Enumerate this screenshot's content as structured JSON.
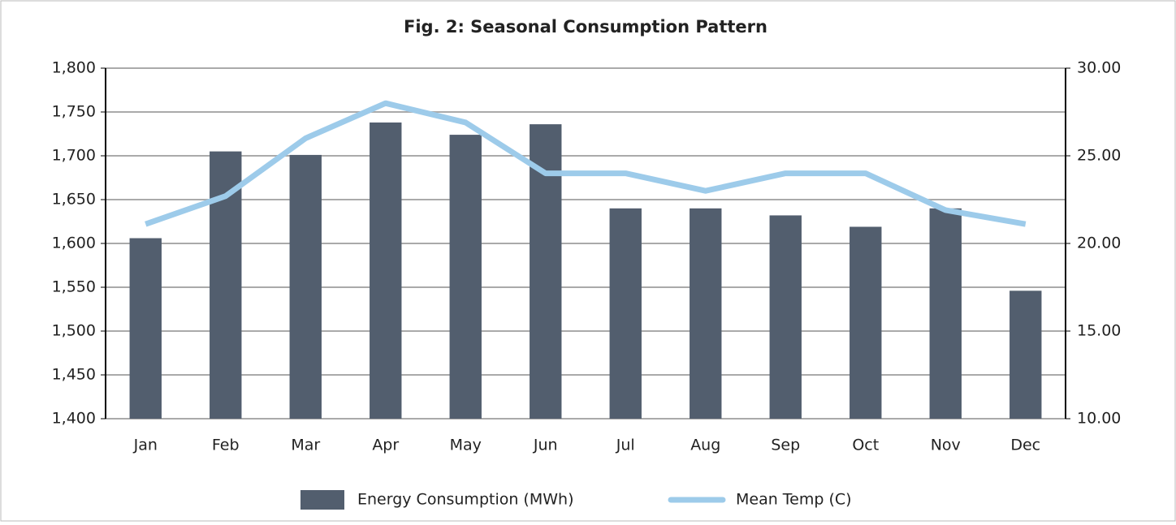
{
  "chart_data": {
    "type": "bar",
    "title": "Fig. 2: Seasonal Consumption Pattern",
    "categories": [
      "Jan",
      "Feb",
      "Mar",
      "Apr",
      "May",
      "Jun",
      "Jul",
      "Aug",
      "Sep",
      "Oct",
      "Nov",
      "Dec"
    ],
    "series": [
      {
        "name": "Energy Consumption (MWh)",
        "type": "bar",
        "color": "#525e6e",
        "values": [
          1606,
          1705,
          1701,
          1738,
          1724,
          1736,
          1640,
          1640,
          1632,
          1619,
          1640,
          1546
        ]
      },
      {
        "name": "Mean Temp (C)",
        "type": "line",
        "axis": "y2",
        "color": "#9dcbea",
        "values": [
          21.1,
          22.7,
          26,
          28,
          26.9,
          24,
          24,
          23,
          24,
          24,
          21.9,
          21.1
        ]
      }
    ],
    "ylim": [
      1400,
      1800
    ],
    "yticks": [
      {
        "value": 1400,
        "label": "1,400"
      },
      {
        "value": 1450,
        "label": "1,450"
      },
      {
        "value": 1500,
        "label": "1,500"
      },
      {
        "value": 1550,
        "label": "1,550"
      },
      {
        "value": 1600,
        "label": "1,600"
      },
      {
        "value": 1650,
        "label": "1,650"
      },
      {
        "value": 1700,
        "label": "1,700"
      },
      {
        "value": 1750,
        "label": "1,750"
      },
      {
        "value": 1800,
        "label": "1,800"
      }
    ],
    "y2lim": [
      10,
      30
    ],
    "y2ticks": [
      {
        "value": 10,
        "label": "10.00"
      },
      {
        "value": 15,
        "label": "15.00"
      },
      {
        "value": 20,
        "label": "20.00"
      },
      {
        "value": 25,
        "label": "25.00"
      },
      {
        "value": 30,
        "label": "30.00"
      }
    ],
    "grid": true,
    "legend": "bottom"
  }
}
